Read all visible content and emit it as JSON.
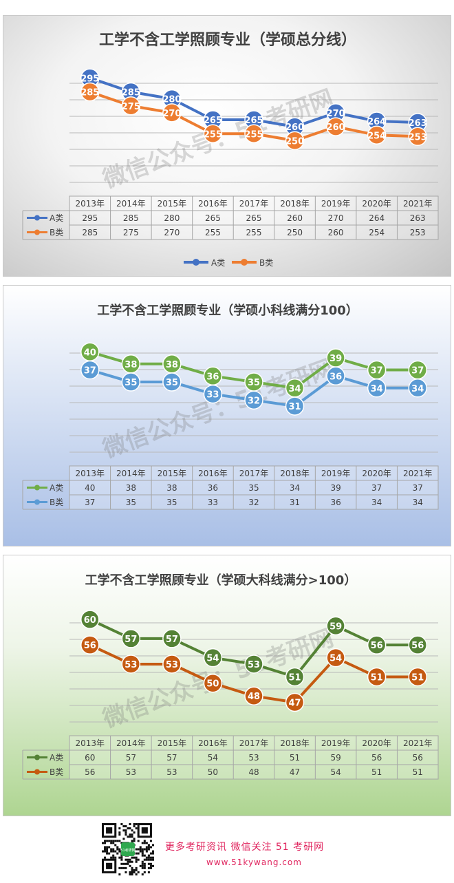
{
  "watermark": "微信公众号：51考研网",
  "chart_data": [
    {
      "type": "line",
      "title": "工学不含工学照顾专业（学硕总分线）",
      "categories": [
        "2013年",
        "2014年",
        "2015年",
        "2016年",
        "2017年",
        "2018年",
        "2019年",
        "2020年",
        "2021年"
      ],
      "series": [
        {
          "name": "A类",
          "values": [
            295,
            285,
            280,
            265,
            265,
            260,
            270,
            264,
            263
          ],
          "color": "#4472c4"
        },
        {
          "name": "B类",
          "values": [
            285,
            275,
            270,
            255,
            255,
            250,
            260,
            254,
            253
          ],
          "color": "#ed7d31"
        }
      ],
      "ylim": [
        225,
        305
      ],
      "grid": true,
      "legend": "bottom",
      "data_table": true
    },
    {
      "type": "line",
      "title": "工学不含工学照顾专业（学硕小科线满分100）",
      "categories": [
        "2013年",
        "2014年",
        "2015年",
        "2016年",
        "2017年",
        "2018年",
        "2019年",
        "2020年",
        "2021年"
      ],
      "series": [
        {
          "name": "A类",
          "values": [
            40,
            38,
            38,
            36,
            35,
            34,
            39,
            37,
            37
          ],
          "color": "#70ad47"
        },
        {
          "name": "B类",
          "values": [
            37,
            35,
            35,
            33,
            32,
            31,
            36,
            34,
            34
          ],
          "color": "#5b9bd5"
        }
      ],
      "ylim": [
        24.5,
        43
      ],
      "grid": true,
      "legend": "none",
      "data_table": true
    },
    {
      "type": "line",
      "title": "工学不含工学照顾专业（学硕大科线满分>100）",
      "categories": [
        "2013年",
        "2014年",
        "2015年",
        "2016年",
        "2017年",
        "2018年",
        "2019年",
        "2020年",
        "2021年"
      ],
      "series": [
        {
          "name": "A类",
          "values": [
            60,
            57,
            57,
            54,
            53,
            51,
            59,
            56,
            56
          ],
          "color": "#548235"
        },
        {
          "name": "B类",
          "values": [
            56,
            53,
            53,
            50,
            48,
            47,
            54,
            51,
            51
          ],
          "color": "#c55a11"
        }
      ],
      "ylim": [
        45,
        62.5
      ],
      "grid": true,
      "legend": "none",
      "data_table": true
    }
  ],
  "footer": {
    "qr_label": "51考研网",
    "line1": "更多考研资讯  微信关注 51 考研网",
    "line2": "www.51kywang.com"
  }
}
